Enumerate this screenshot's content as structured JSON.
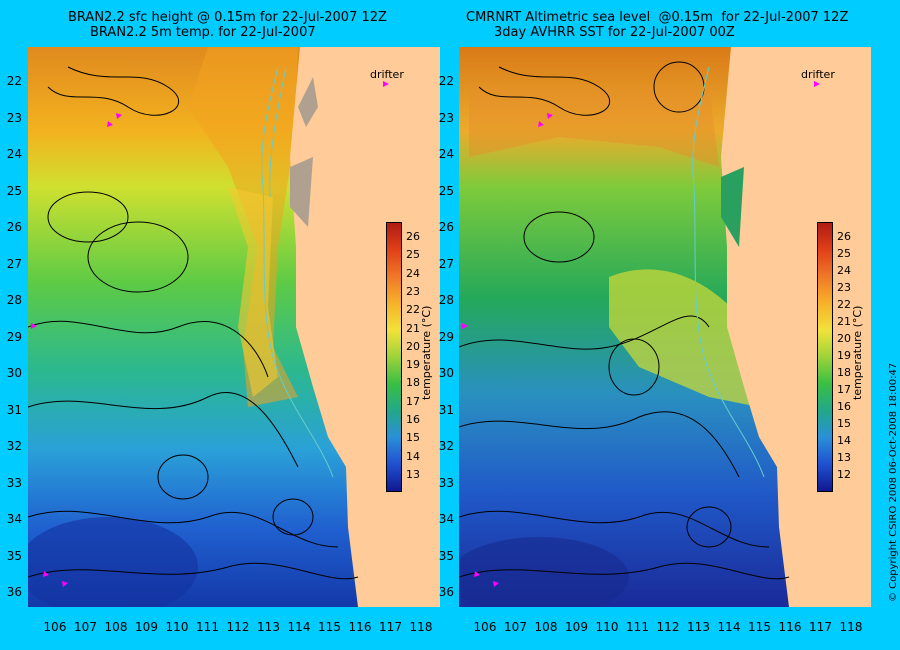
{
  "panels": [
    {
      "title_line1": "BRAN2.2 sfc height @ 0.15m for 22-Jul-2007 12Z",
      "title_line2": "BRAN2.2 5m temp. for 22-Jul-2007",
      "drifter_label": "drifter",
      "colorbar_label": "temperature (°C)",
      "colorbar_ticks": [
        "13",
        "14",
        "15",
        "16",
        "17",
        "18",
        "19",
        "20",
        "21",
        "22",
        "23",
        "24",
        "25",
        "26"
      ]
    },
    {
      "title_line1": "CMRNRT Altimetric sea level  @0.15m  for 22-Jul-2007 12Z",
      "title_line2": "3day AVHRR SST for 22-Jul-2007 00Z",
      "drifter_label": "drifter",
      "colorbar_label": "temperature (°C)",
      "colorbar_ticks": [
        "12",
        "13",
        "14",
        "15",
        "16",
        "17",
        "18",
        "19",
        "20",
        "21",
        "22",
        "23",
        "24",
        "25",
        "26"
      ]
    }
  ],
  "lat_ticks": [
    "22",
    "23",
    "24",
    "25",
    "26",
    "27",
    "28",
    "29",
    "30",
    "31",
    "32",
    "33",
    "34",
    "35",
    "36"
  ],
  "lon_ticks": [
    "106",
    "107",
    "108",
    "109",
    "110",
    "111",
    "112",
    "113",
    "114",
    "115",
    "116",
    "117",
    "118"
  ],
  "copyright": "© Copyright CSIRO 2008    06-Oct-2008 18:00:47",
  "colors": {
    "background": "#00ccff",
    "land": "#ffcc99",
    "contour": "#000000",
    "isobath": "#66cccc",
    "drifter": "#ff00ff"
  }
}
